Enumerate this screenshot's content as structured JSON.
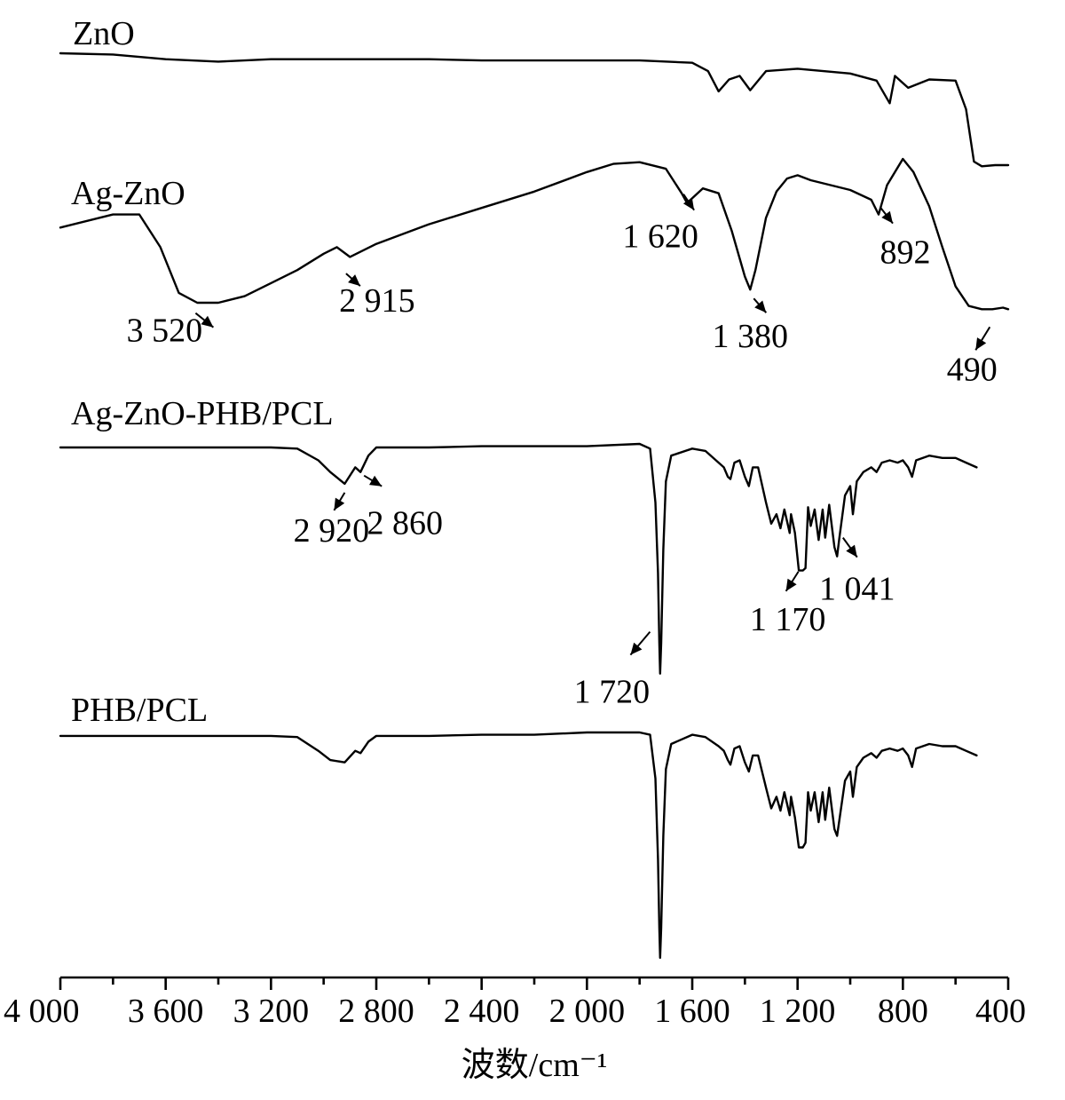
{
  "chart_data": {
    "type": "line",
    "title": "",
    "xlabel": "波数/cm⁻¹",
    "ylabel": "",
    "x_reversed": true,
    "xlim": [
      4000,
      400
    ],
    "x_ticks": [
      4000,
      3600,
      3200,
      2800,
      2400,
      2000,
      1600,
      1200,
      800,
      400
    ],
    "x_tick_labels": [
      "4 000",
      "3 600",
      "3 200",
      "2 800",
      "2 400",
      "2 000",
      "1 600",
      "1 200",
      "800",
      "400"
    ],
    "grid": false,
    "legend": "none (series labelled directly above each curve)",
    "y_units": "transmittance (arbitrary, offset curves)",
    "series": [
      {
        "name": "ZnO",
        "points": [
          [
            4000,
            0.97
          ],
          [
            3800,
            0.96
          ],
          [
            3600,
            0.92
          ],
          [
            3400,
            0.9
          ],
          [
            3200,
            0.92
          ],
          [
            3000,
            0.92
          ],
          [
            2800,
            0.92
          ],
          [
            2600,
            0.92
          ],
          [
            2400,
            0.91
          ],
          [
            2200,
            0.91
          ],
          [
            2000,
            0.91
          ],
          [
            1800,
            0.91
          ],
          [
            1600,
            0.89
          ],
          [
            1540,
            0.82
          ],
          [
            1500,
            0.65
          ],
          [
            1460,
            0.75
          ],
          [
            1420,
            0.78
          ],
          [
            1380,
            0.66
          ],
          [
            1320,
            0.82
          ],
          [
            1200,
            0.84
          ],
          [
            1000,
            0.8
          ],
          [
            900,
            0.74
          ],
          [
            850,
            0.55
          ],
          [
            830,
            0.78
          ],
          [
            780,
            0.68
          ],
          [
            700,
            0.75
          ],
          [
            600,
            0.74
          ],
          [
            560,
            0.5
          ],
          [
            530,
            0.06
          ],
          [
            500,
            0.02
          ],
          [
            450,
            0.03
          ],
          [
            400,
            0.03
          ]
        ]
      },
      {
        "name": "Ag-ZnO",
        "points": [
          [
            4000,
            0.52
          ],
          [
            3800,
            0.6
          ],
          [
            3700,
            0.6
          ],
          [
            3620,
            0.4
          ],
          [
            3550,
            0.12
          ],
          [
            3480,
            0.06
          ],
          [
            3400,
            0.06
          ],
          [
            3300,
            0.1
          ],
          [
            3200,
            0.18
          ],
          [
            3100,
            0.26
          ],
          [
            3000,
            0.36
          ],
          [
            2950,
            0.4
          ],
          [
            2900,
            0.34
          ],
          [
            2800,
            0.42
          ],
          [
            2600,
            0.54
          ],
          [
            2400,
            0.64
          ],
          [
            2200,
            0.74
          ],
          [
            2000,
            0.86
          ],
          [
            1900,
            0.91
          ],
          [
            1800,
            0.92
          ],
          [
            1700,
            0.88
          ],
          [
            1640,
            0.73
          ],
          [
            1620,
            0.67
          ],
          [
            1600,
            0.7
          ],
          [
            1560,
            0.76
          ],
          [
            1500,
            0.73
          ],
          [
            1450,
            0.5
          ],
          [
            1400,
            0.22
          ],
          [
            1380,
            0.14
          ],
          [
            1360,
            0.26
          ],
          [
            1320,
            0.58
          ],
          [
            1280,
            0.74
          ],
          [
            1240,
            0.82
          ],
          [
            1200,
            0.84
          ],
          [
            1150,
            0.81
          ],
          [
            1000,
            0.75
          ],
          [
            920,
            0.69
          ],
          [
            892,
            0.6
          ],
          [
            860,
            0.78
          ],
          [
            800,
            0.94
          ],
          [
            760,
            0.86
          ],
          [
            700,
            0.65
          ],
          [
            650,
            0.4
          ],
          [
            600,
            0.16
          ],
          [
            550,
            0.04
          ],
          [
            500,
            0.02
          ],
          [
            460,
            0.02
          ],
          [
            420,
            0.03
          ],
          [
            400,
            0.02
          ]
        ]
      },
      {
        "name": "Ag-ZnO-PHB/PCL",
        "points": [
          [
            4000,
            0.985
          ],
          [
            3600,
            0.985
          ],
          [
            3200,
            0.985
          ],
          [
            3100,
            0.98
          ],
          [
            3020,
            0.93
          ],
          [
            2975,
            0.88
          ],
          [
            2920,
            0.83
          ],
          [
            2880,
            0.9
          ],
          [
            2860,
            0.88
          ],
          [
            2830,
            0.95
          ],
          [
            2800,
            0.985
          ],
          [
            2600,
            0.985
          ],
          [
            2400,
            0.99
          ],
          [
            2200,
            0.99
          ],
          [
            2000,
            0.99
          ],
          [
            1800,
            1.0
          ],
          [
            1760,
            0.98
          ],
          [
            1740,
            0.75
          ],
          [
            1730,
            0.45
          ],
          [
            1725,
            0.15
          ],
          [
            1722,
            0.02
          ],
          [
            1718,
            0.15
          ],
          [
            1710,
            0.55
          ],
          [
            1700,
            0.84
          ],
          [
            1680,
            0.95
          ],
          [
            1600,
            0.98
          ],
          [
            1550,
            0.97
          ],
          [
            1500,
            0.92
          ],
          [
            1480,
            0.9
          ],
          [
            1465,
            0.86
          ],
          [
            1455,
            0.85
          ],
          [
            1440,
            0.92
          ],
          [
            1420,
            0.93
          ],
          [
            1400,
            0.86
          ],
          [
            1385,
            0.82
          ],
          [
            1370,
            0.9
          ],
          [
            1350,
            0.9
          ],
          [
            1320,
            0.75
          ],
          [
            1300,
            0.66
          ],
          [
            1280,
            0.7
          ],
          [
            1265,
            0.64
          ],
          [
            1250,
            0.72
          ],
          [
            1230,
            0.62
          ],
          [
            1225,
            0.7
          ],
          [
            1210,
            0.62
          ],
          [
            1195,
            0.46
          ],
          [
            1180,
            0.46
          ],
          [
            1170,
            0.47
          ],
          [
            1160,
            0.73
          ],
          [
            1150,
            0.65
          ],
          [
            1135,
            0.72
          ],
          [
            1120,
            0.59
          ],
          [
            1105,
            0.72
          ],
          [
            1095,
            0.6
          ],
          [
            1080,
            0.74
          ],
          [
            1060,
            0.56
          ],
          [
            1050,
            0.52
          ],
          [
            1041,
            0.6
          ],
          [
            1020,
            0.78
          ],
          [
            1000,
            0.82
          ],
          [
            990,
            0.7
          ],
          [
            975,
            0.84
          ],
          [
            950,
            0.88
          ],
          [
            920,
            0.9
          ],
          [
            900,
            0.88
          ],
          [
            880,
            0.92
          ],
          [
            850,
            0.93
          ],
          [
            820,
            0.92
          ],
          [
            800,
            0.93
          ],
          [
            780,
            0.9
          ],
          [
            765,
            0.86
          ],
          [
            750,
            0.93
          ],
          [
            700,
            0.95
          ],
          [
            650,
            0.94
          ],
          [
            600,
            0.94
          ],
          [
            560,
            0.92
          ],
          [
            520,
            0.9
          ]
        ]
      },
      {
        "name": "PHB/PCL",
        "points": [
          [
            4000,
            0.985
          ],
          [
            3600,
            0.985
          ],
          [
            3200,
            0.985
          ],
          [
            3100,
            0.98
          ],
          [
            3020,
            0.92
          ],
          [
            2975,
            0.88
          ],
          [
            2920,
            0.87
          ],
          [
            2880,
            0.92
          ],
          [
            2860,
            0.91
          ],
          [
            2830,
            0.96
          ],
          [
            2800,
            0.985
          ],
          [
            2600,
            0.985
          ],
          [
            2400,
            0.99
          ],
          [
            2200,
            0.99
          ],
          [
            2000,
            1.0
          ],
          [
            1800,
            1.0
          ],
          [
            1760,
            0.99
          ],
          [
            1740,
            0.8
          ],
          [
            1730,
            0.45
          ],
          [
            1725,
            0.15
          ],
          [
            1722,
            0.02
          ],
          [
            1718,
            0.15
          ],
          [
            1710,
            0.55
          ],
          [
            1700,
            0.84
          ],
          [
            1680,
            0.95
          ],
          [
            1600,
            0.99
          ],
          [
            1550,
            0.98
          ],
          [
            1500,
            0.94
          ],
          [
            1480,
            0.92
          ],
          [
            1465,
            0.88
          ],
          [
            1455,
            0.86
          ],
          [
            1440,
            0.93
          ],
          [
            1420,
            0.94
          ],
          [
            1400,
            0.87
          ],
          [
            1385,
            0.83
          ],
          [
            1370,
            0.9
          ],
          [
            1350,
            0.9
          ],
          [
            1320,
            0.76
          ],
          [
            1300,
            0.67
          ],
          [
            1280,
            0.72
          ],
          [
            1265,
            0.66
          ],
          [
            1250,
            0.74
          ],
          [
            1230,
            0.64
          ],
          [
            1225,
            0.72
          ],
          [
            1210,
            0.63
          ],
          [
            1195,
            0.5
          ],
          [
            1180,
            0.5
          ],
          [
            1170,
            0.52
          ],
          [
            1160,
            0.74
          ],
          [
            1150,
            0.66
          ],
          [
            1135,
            0.74
          ],
          [
            1120,
            0.61
          ],
          [
            1105,
            0.74
          ],
          [
            1095,
            0.62
          ],
          [
            1080,
            0.76
          ],
          [
            1060,
            0.58
          ],
          [
            1050,
            0.55
          ],
          [
            1041,
            0.62
          ],
          [
            1020,
            0.79
          ],
          [
            1000,
            0.83
          ],
          [
            990,
            0.72
          ],
          [
            975,
            0.85
          ],
          [
            950,
            0.89
          ],
          [
            920,
            0.91
          ],
          [
            900,
            0.89
          ],
          [
            880,
            0.92
          ],
          [
            850,
            0.93
          ],
          [
            820,
            0.92
          ],
          [
            800,
            0.93
          ],
          [
            780,
            0.9
          ],
          [
            765,
            0.85
          ],
          [
            750,
            0.93
          ],
          [
            700,
            0.95
          ],
          [
            650,
            0.94
          ],
          [
            600,
            0.94
          ],
          [
            560,
            0.92
          ],
          [
            520,
            0.9
          ]
        ]
      }
    ],
    "annotations": [
      {
        "series": "Ag-ZnO",
        "x": 3520,
        "text": "3 520"
      },
      {
        "series": "Ag-ZnO",
        "x": 2915,
        "text": "2 915"
      },
      {
        "series": "Ag-ZnO",
        "x": 1620,
        "text": "1 620"
      },
      {
        "series": "Ag-ZnO",
        "x": 1380,
        "text": "1 380"
      },
      {
        "series": "Ag-ZnO",
        "x": 892,
        "text": "892"
      },
      {
        "series": "Ag-ZnO",
        "x": 490,
        "text": "490"
      },
      {
        "series": "Ag-ZnO-PHB/PCL",
        "x": 2920,
        "text": "2 920"
      },
      {
        "series": "Ag-ZnO-PHB/PCL",
        "x": 2860,
        "text": "2 860"
      },
      {
        "series": "Ag-ZnO-PHB/PCL",
        "x": 1720,
        "text": "1 720"
      },
      {
        "series": "Ag-ZnO-PHB/PCL",
        "x": 1170,
        "text": "1 170"
      },
      {
        "series": "Ag-ZnO-PHB/PCL",
        "x": 1041,
        "text": "1 041"
      }
    ]
  }
}
